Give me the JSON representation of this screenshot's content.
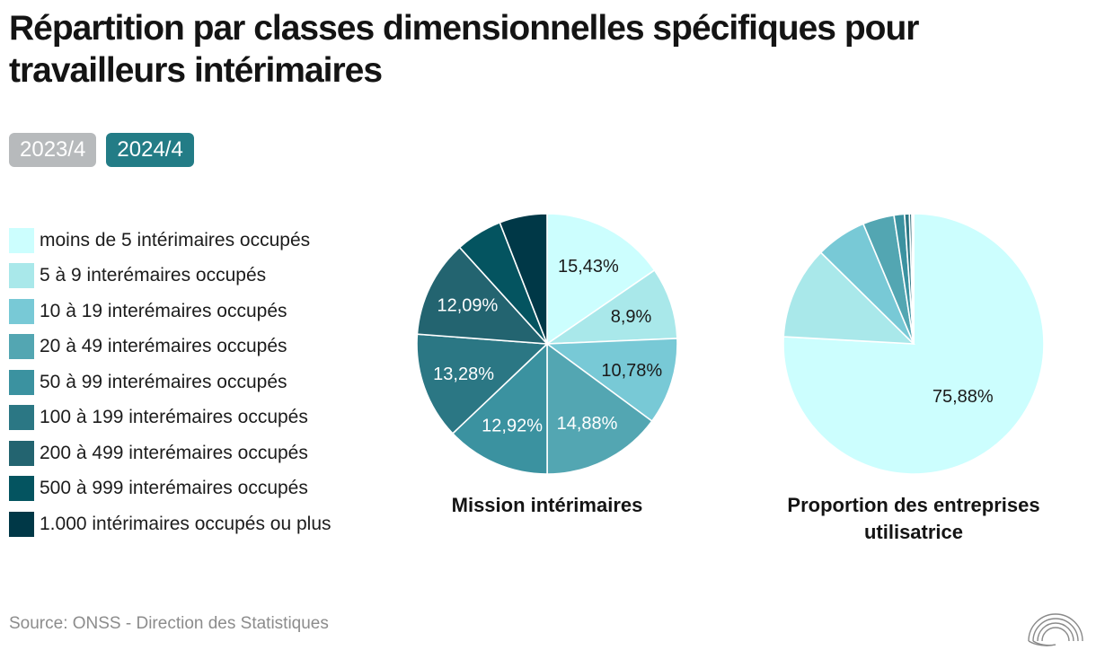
{
  "title": "Répartition par classes dimensionnelles spécifiques pour travailleurs intérimaires",
  "tabs": [
    {
      "label": "2023/4",
      "active": false
    },
    {
      "label": "2024/4",
      "active": true
    }
  ],
  "legend": [
    {
      "label": "moins de 5 intérimaires occupés",
      "color": "#ccfefe"
    },
    {
      "label": "5 à 9 interémaires occupés",
      "color": "#a9e8ea"
    },
    {
      "label": "10 à 19 interémaires occupés",
      "color": "#78c9d6"
    },
    {
      "label": "20 à 49 interémaires occupés",
      "color": "#53a6b2"
    },
    {
      "label": "50 à 99 interémaires occupés",
      "color": "#3b92a0"
    },
    {
      "label": "100 à 199 interémaires occupés",
      "color": "#2b7784"
    },
    {
      "label": "200 à 499 interémaires occupés",
      "color": "#236470"
    },
    {
      "label": "500 à 999 interémaires occupés",
      "color": "#045460"
    },
    {
      "label": "1.000 intérimaires occupés ou plus",
      "color": "#003847"
    }
  ],
  "chart_data": [
    {
      "type": "pie",
      "title": "Mission intérimaires",
      "categories": [
        "moins de 5 intérimaires occupés",
        "5 à 9 interémaires occupés",
        "10 à 19 interémaires occupés",
        "20 à 49 interémaires occupés",
        "50 à 99 interémaires occupés",
        "100 à 199 interémaires occupés",
        "200 à 499 interémaires occupés",
        "500 à 999 interémaires occupés",
        "1.000 intérimaires occupés ou plus"
      ],
      "values": [
        15.43,
        8.9,
        10.78,
        14.88,
        12.92,
        13.28,
        12.09,
        5.8,
        5.92
      ],
      "labels": [
        "15,43%",
        "8,9%",
        "10,78%",
        "14,88%",
        "12,92%",
        "13,28%",
        "12,09%",
        "",
        ""
      ]
    },
    {
      "type": "pie",
      "title": "Proportion des entreprises utilisatrice",
      "categories": [
        "moins de 5 intérimaires occupés",
        "5 à 9 interémaires occupés",
        "10 à 19 interémaires occupés",
        "20 à 49 interémaires occupés",
        "50 à 99 interémaires occupés",
        "100 à 199 interémaires occupés",
        "200 à 499 interémaires occupés",
        "500 à 999 interémaires occupés",
        "1.000 intérimaires occupés ou plus"
      ],
      "values": [
        75.88,
        11.5,
        6.3,
        3.9,
        1.3,
        0.6,
        0.3,
        0.15,
        0.07
      ],
      "labels": [
        "75,88%",
        "",
        "",
        "",
        "",
        "",
        "",
        "",
        ""
      ]
    }
  ],
  "source": "Source: ONSS - Direction des Statistiques",
  "logo_icon": "onss-arcs-logo-icon"
}
